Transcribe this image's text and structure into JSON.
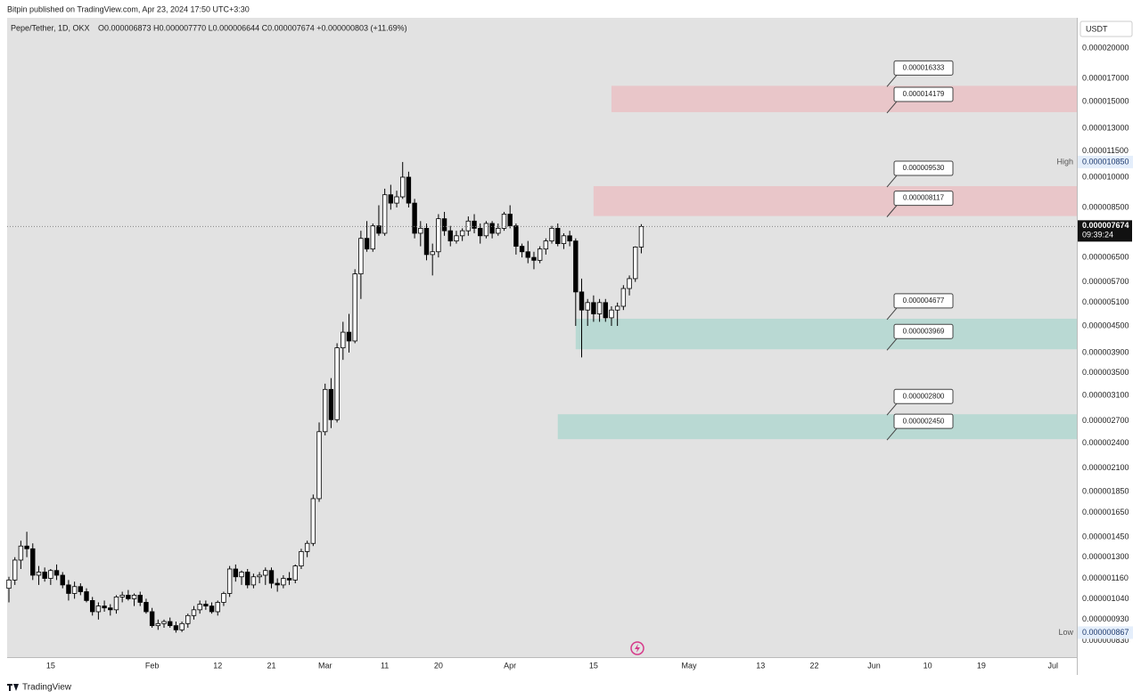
{
  "header": "Bitpin published on TradingView.com, Apr 23, 2024 17:50 UTC+3:30",
  "footer": "TradingView",
  "chart_data": {
    "type": "candlestick",
    "title": "Pepe/Tether, 1D, OKX",
    "ohlc_text": "O0.000006873 H0.000007770 L0.000006644 C0.000007674 +0.000000803 (+11.69%)",
    "currency": "USDT",
    "log_scale": true,
    "grid": false,
    "up_color": "#ffffff",
    "down_color": "#000000",
    "wick_color": "#000000",
    "x": [
      "2024-01-08",
      "2024-01-09",
      "2024-01-10",
      "2024-01-11",
      "2024-01-12",
      "2024-01-13",
      "2024-01-14",
      "2024-01-15",
      "2024-01-16",
      "2024-01-17",
      "2024-01-18",
      "2024-01-19",
      "2024-01-20",
      "2024-01-21",
      "2024-01-22",
      "2024-01-23",
      "2024-01-24",
      "2024-01-25",
      "2024-01-26",
      "2024-01-27",
      "2024-01-28",
      "2024-01-29",
      "2024-01-30",
      "2024-01-31",
      "2024-02-01",
      "2024-02-02",
      "2024-02-03",
      "2024-02-04",
      "2024-02-05",
      "2024-02-06",
      "2024-02-07",
      "2024-02-08",
      "2024-02-09",
      "2024-02-10",
      "2024-02-11",
      "2024-02-12",
      "2024-02-13",
      "2024-02-14",
      "2024-02-15",
      "2024-02-16",
      "2024-02-17",
      "2024-02-18",
      "2024-02-19",
      "2024-02-20",
      "2024-02-21",
      "2024-02-22",
      "2024-02-23",
      "2024-02-24",
      "2024-02-25",
      "2024-02-26",
      "2024-02-27",
      "2024-02-28",
      "2024-02-29",
      "2024-03-01",
      "2024-03-02",
      "2024-03-03",
      "2024-03-04",
      "2024-03-05",
      "2024-03-06",
      "2024-03-07",
      "2024-03-08",
      "2024-03-09",
      "2024-03-10",
      "2024-03-11",
      "2024-03-12",
      "2024-03-13",
      "2024-03-14",
      "2024-03-15",
      "2024-03-16",
      "2024-03-17",
      "2024-03-18",
      "2024-03-19",
      "2024-03-20",
      "2024-03-21",
      "2024-03-22",
      "2024-03-23",
      "2024-03-24",
      "2024-03-25",
      "2024-03-26",
      "2024-03-27",
      "2024-03-28",
      "2024-03-29",
      "2024-03-30",
      "2024-03-31",
      "2024-04-01",
      "2024-04-02",
      "2024-04-03",
      "2024-04-04",
      "2024-04-05",
      "2024-04-06",
      "2024-04-07",
      "2024-04-08",
      "2024-04-09",
      "2024-04-10",
      "2024-04-11",
      "2024-04-12",
      "2024-04-13",
      "2024-04-14",
      "2024-04-15",
      "2024-04-16",
      "2024-04-17",
      "2024-04-18",
      "2024-04-19",
      "2024-04-20",
      "2024-04-21",
      "2024-04-22",
      "2024-04-23"
    ],
    "open": [
      1.1e-06,
      1.15e-06,
      1.28e-06,
      1.38e-06,
      1.36e-06,
      1.18e-06,
      1.2e-06,
      1.16e-06,
      1.21e-06,
      1.18e-06,
      1.12e-06,
      1.07e-06,
      1.11e-06,
      1.08e-06,
      1.03e-06,
      9.7e-07,
      1e-06,
      9.9e-07,
      9.8e-07,
      1.05e-06,
      1.06e-06,
      1.04e-06,
      1.06e-06,
      1.02e-06,
      9.7e-07,
      9e-07,
      9.1e-07,
      9.2e-07,
      9e-07,
      8.8e-07,
      9.1e-07,
      9.5e-07,
      9.8e-07,
      1.01e-06,
      1e-06,
      9.7e-07,
      1.02e-06,
      1.07e-06,
      1.22e-06,
      1.17e-06,
      1.2e-06,
      1.12e-06,
      1.17e-06,
      1.18e-06,
      1.21e-06,
      1.13e-06,
      1.12e-06,
      1.16e-06,
      1.15e-06,
      1.24e-06,
      1.34e-06,
      1.4e-06,
      1.78e-06,
      2.55e-06,
      3.2e-06,
      2.72e-06,
      4e-06,
      4.35e-06,
      4.15e-06,
      5.95e-06,
      7.2e-06,
      6.8e-06,
      7.7e-06,
      7.4e-06,
      9.1e-06,
      8.7e-06,
      9e-06,
      1e-05,
      8.7e-06,
      7.4e-06,
      7.6e-06,
      6.6e-06,
      6.7e-06,
      8e-06,
      7.5e-06,
      7.1e-06,
      7.3e-06,
      7.5e-06,
      7.9e-06,
      7.6e-06,
      7.3e-06,
      7.8e-06,
      7.4e-06,
      7.6e-06,
      8.2e-06,
      7.7e-06,
      6.9e-06,
      6.7e-06,
      6.5e-06,
      6.4e-06,
      6.8e-06,
      7.1e-06,
      7.6e-06,
      7e-06,
      7.3e-06,
      7.1e-06,
      5.4e-06,
      4.9e-06,
      5.1e-06,
      4.8e-06,
      5.1e-06,
      4.7e-06,
      4.9e-06,
      5e-06,
      5.5e-06,
      5.8e-06,
      6.873e-06
    ],
    "high": [
      1.17e-06,
      1.3e-06,
      1.42e-06,
      1.49e-06,
      1.4e-06,
      1.24e-06,
      1.23e-06,
      1.22e-06,
      1.25e-06,
      1.2e-06,
      1.15e-06,
      1.14e-06,
      1.13e-06,
      1.1e-06,
      1.05e-06,
      1.02e-06,
      1.03e-06,
      1.01e-06,
      1.06e-06,
      1.08e-06,
      1.09e-06,
      1.07e-06,
      1.08e-06,
      1.04e-06,
      9.9e-07,
      9.3e-07,
      9.3e-07,
      9.4e-07,
      9.2e-07,
      9.2e-07,
      9.6e-07,
      1e-06,
      1.03e-06,
      1.03e-06,
      1.02e-06,
      1.03e-06,
      1.08e-06,
      1.24e-06,
      1.25e-06,
      1.21e-06,
      1.22e-06,
      1.19e-06,
      1.2e-06,
      1.23e-06,
      1.23e-06,
      1.16e-06,
      1.18e-06,
      1.2e-06,
      1.25e-06,
      1.36e-06,
      1.42e-06,
      1.82e-06,
      2.68e-06,
      3.3e-06,
      3.4e-06,
      4.1e-06,
      4.6e-06,
      4.8e-06,
      6.1e-06,
      7.5e-06,
      7.9e-06,
      7.8e-06,
      8.6e-06,
      9.4e-06,
      9.6e-06,
      9.3e-06,
      1.085e-05,
      1.03e-05,
      8.9e-06,
      7.9e-06,
      7.8e-06,
      7e-06,
      8.2e-06,
      8.3e-06,
      7.7e-06,
      7.5e-06,
      7.6e-06,
      8.1e-06,
      8.2e-06,
      7.8e-06,
      7.9e-06,
      7.9e-06,
      7.8e-06,
      8.3e-06,
      8.6e-06,
      7.8e-06,
      7e-06,
      7.1e-06,
      6.7e-06,
      6.9e-06,
      7.2e-06,
      7.7e-06,
      7.8e-06,
      7.4e-06,
      7.5e-06,
      7.2e-06,
      5.8e-06,
      5.2e-06,
      5.3e-06,
      5.2e-06,
      5.2e-06,
      5e-06,
      5.1e-06,
      5.6e-06,
      5.9e-06,
      6.9e-06,
      7.77e-06
    ],
    "low": [
      1.02e-06,
      1.12e-06,
      1.22e-06,
      1.3e-06,
      1.15e-06,
      1.12e-06,
      1.14e-06,
      1.12e-06,
      1.15e-06,
      1.1e-06,
      1.03e-06,
      1.04e-06,
      1.06e-06,
      1.02e-06,
      9.5e-07,
      9.3e-07,
      9.7e-07,
      9.5e-07,
      9.6e-07,
      1.02e-06,
      1.03e-06,
      1e-06,
      1e-06,
      9.6e-07,
      8.9e-07,
      8.8e-07,
      8.9e-07,
      8.9e-07,
      8.67e-07,
      8.7e-07,
      8.9e-07,
      9.3e-07,
      9.6e-07,
      9.8e-07,
      9.6e-07,
      9.5e-07,
      1e-06,
      1.05e-06,
      1.14e-06,
      1.12e-06,
      1.1e-06,
      1.1e-06,
      1.13e-06,
      1.12e-06,
      1.1e-06,
      1.08e-06,
      1.1e-06,
      1.12e-06,
      1.13e-06,
      1.22e-06,
      1.3e-06,
      1.38e-06,
      1.75e-06,
      2.5e-06,
      2.6e-06,
      2.68e-06,
      3.75e-06,
      3.9e-06,
      4.1e-06,
      5.2e-06,
      6.7e-06,
      6.7e-06,
      7.3e-06,
      7.3e-06,
      8.4e-06,
      8.5e-06,
      8.9e-06,
      8.5e-06,
      7.2e-06,
      6.9e-06,
      6.4e-06,
      5.9e-06,
      6.5e-06,
      7.3e-06,
      6.9e-06,
      7e-06,
      7.1e-06,
      7.3e-06,
      7.4e-06,
      7e-06,
      7.2e-06,
      7.2e-06,
      7.3e-06,
      7.5e-06,
      7.6e-06,
      6.6e-06,
      6.5e-06,
      6.3e-06,
      6.1e-06,
      6.3e-06,
      6.6e-06,
      7e-06,
      6.9e-06,
      6.8e-06,
      6.9e-06,
      4.5e-06,
      3.8e-06,
      4.5e-06,
      4.6e-06,
      4.6e-06,
      4.6e-06,
      4.5e-06,
      4.5e-06,
      4.9e-06,
      5.3e-06,
      5.7e-06,
      6.644e-06
    ],
    "close": [
      1.15e-06,
      1.28e-06,
      1.38e-06,
      1.36e-06,
      1.18e-06,
      1.2e-06,
      1.16e-06,
      1.21e-06,
      1.18e-06,
      1.12e-06,
      1.07e-06,
      1.11e-06,
      1.08e-06,
      1.03e-06,
      9.7e-07,
      1e-06,
      9.9e-07,
      9.8e-07,
      1.05e-06,
      1.06e-06,
      1.04e-06,
      1.06e-06,
      1.02e-06,
      9.7e-07,
      9e-07,
      9.1e-07,
      9.2e-07,
      9e-07,
      8.8e-07,
      9.1e-07,
      9.5e-07,
      9.8e-07,
      1.01e-06,
      1e-06,
      9.7e-07,
      1.02e-06,
      1.07e-06,
      1.22e-06,
      1.17e-06,
      1.2e-06,
      1.12e-06,
      1.17e-06,
      1.18e-06,
      1.21e-06,
      1.13e-06,
      1.12e-06,
      1.16e-06,
      1.15e-06,
      1.24e-06,
      1.34e-06,
      1.4e-06,
      1.78e-06,
      2.55e-06,
      3.2e-06,
      2.72e-06,
      4e-06,
      4.35e-06,
      4.15e-06,
      5.95e-06,
      7.2e-06,
      6.8e-06,
      7.7e-06,
      7.4e-06,
      9.1e-06,
      8.7e-06,
      9e-06,
      1e-05,
      8.7e-06,
      7.4e-06,
      7.6e-06,
      6.6e-06,
      6.7e-06,
      8e-06,
      7.5e-06,
      7.1e-06,
      7.3e-06,
      7.5e-06,
      7.9e-06,
      7.6e-06,
      7.3e-06,
      7.8e-06,
      7.4e-06,
      7.6e-06,
      8.2e-06,
      7.7e-06,
      6.9e-06,
      6.7e-06,
      6.5e-06,
      6.4e-06,
      6.8e-06,
      7.1e-06,
      7.6e-06,
      7e-06,
      7.3e-06,
      7.1e-06,
      5.4e-06,
      4.9e-06,
      5.1e-06,
      4.8e-06,
      5.1e-06,
      4.7e-06,
      4.9e-06,
      5e-06,
      5.5e-06,
      5.8e-06,
      6.873e-06,
      7.674e-06
    ],
    "xlim": [
      "2024-01-08",
      "2024-07-05"
    ],
    "xticks": [
      {
        "value": "2024-01-15",
        "label": "15"
      },
      {
        "value": "2024-02-01",
        "label": "Feb"
      },
      {
        "value": "2024-02-12",
        "label": "12"
      },
      {
        "value": "2024-02-21",
        "label": "21"
      },
      {
        "value": "2024-03-01",
        "label": "Mar"
      },
      {
        "value": "2024-03-11",
        "label": "11"
      },
      {
        "value": "2024-03-20",
        "label": "20"
      },
      {
        "value": "2024-04-01",
        "label": "Apr"
      },
      {
        "value": "2024-04-15",
        "label": "15"
      },
      {
        "value": "2024-05-01",
        "label": "May"
      },
      {
        "value": "2024-05-13",
        "label": "13"
      },
      {
        "value": "2024-05-22",
        "label": "22"
      },
      {
        "value": "2024-06-01",
        "label": "Jun"
      },
      {
        "value": "2024-06-10",
        "label": "10"
      },
      {
        "value": "2024-06-19",
        "label": "19"
      },
      {
        "value": "2024-07-01",
        "label": "Jul"
      }
    ],
    "ylim": [
      7.6e-07,
      2.353e-05
    ],
    "yticks": [
      {
        "value": 2e-05,
        "label": "0.000020000"
      },
      {
        "value": 1.7e-05,
        "label": "0.000017000"
      },
      {
        "value": 1.5e-05,
        "label": "0.000015000"
      },
      {
        "value": 1.3e-05,
        "label": "0.000013000"
      },
      {
        "value": 1.15e-05,
        "label": "0.000011500"
      },
      {
        "value": 1e-05,
        "label": "0.000010000"
      },
      {
        "value": 8.5e-06,
        "label": "0.000008500"
      },
      {
        "value": 6.5e-06,
        "label": "0.000006500"
      },
      {
        "value": 5.7e-06,
        "label": "0.000005700"
      },
      {
        "value": 5.1e-06,
        "label": "0.000005100"
      },
      {
        "value": 4.5e-06,
        "label": "0.000004500"
      },
      {
        "value": 3.9e-06,
        "label": "0.000003900"
      },
      {
        "value": 3.5e-06,
        "label": "0.000003500"
      },
      {
        "value": 3.1e-06,
        "label": "0.000003100"
      },
      {
        "value": 2.7e-06,
        "label": "0.000002700"
      },
      {
        "value": 2.4e-06,
        "label": "0.000002400"
      },
      {
        "value": 2.1e-06,
        "label": "0.000002100"
      },
      {
        "value": 1.85e-06,
        "label": "0.000001850"
      },
      {
        "value": 1.65e-06,
        "label": "0.000001650"
      },
      {
        "value": 1.45e-06,
        "label": "0.000001450"
      },
      {
        "value": 1.3e-06,
        "label": "0.000001300"
      },
      {
        "value": 1.16e-06,
        "label": "0.000001160"
      },
      {
        "value": 1.04e-06,
        "label": "0.000001040"
      },
      {
        "value": 9.3e-07,
        "label": "0.000000930"
      },
      {
        "value": 8.3e-07,
        "label": "0.000000830"
      }
    ],
    "zones": [
      {
        "start": "2024-04-18",
        "color": "#e9c6c9",
        "top": {
          "value": 1.6333e-05,
          "label": "0.000016333"
        },
        "bottom": {
          "value": 1.4179e-05,
          "label": "0.000014179"
        }
      },
      {
        "start": "2024-04-15",
        "color": "#e9c6c9",
        "top": {
          "value": 9.53e-06,
          "label": "0.000009530"
        },
        "bottom": {
          "value": 8.117e-06,
          "label": "0.000008117"
        }
      },
      {
        "start": "2024-04-12",
        "color": "#b9d9d3",
        "top": {
          "value": 4.677e-06,
          "label": "0.000004677"
        },
        "bottom": {
          "value": 3.969e-06,
          "label": "0.000003969"
        }
      },
      {
        "start": "2024-04-09",
        "color": "#b9d9d3",
        "top": {
          "value": 2.8e-06,
          "label": "0.000002800"
        },
        "bottom": {
          "value": 2.45e-06,
          "label": "0.000002450"
        }
      }
    ],
    "high_marker": {
      "label": "High",
      "price": {
        "value": 1.085e-05,
        "label": "0.000010850"
      }
    },
    "low_marker": {
      "label": "Low",
      "price": {
        "value": 8.67e-07,
        "label": "0.000000867"
      }
    },
    "last_price": {
      "price": {
        "value": 7.674e-06,
        "label": "0.000007674"
      },
      "countdown": "09:39:24"
    }
  }
}
